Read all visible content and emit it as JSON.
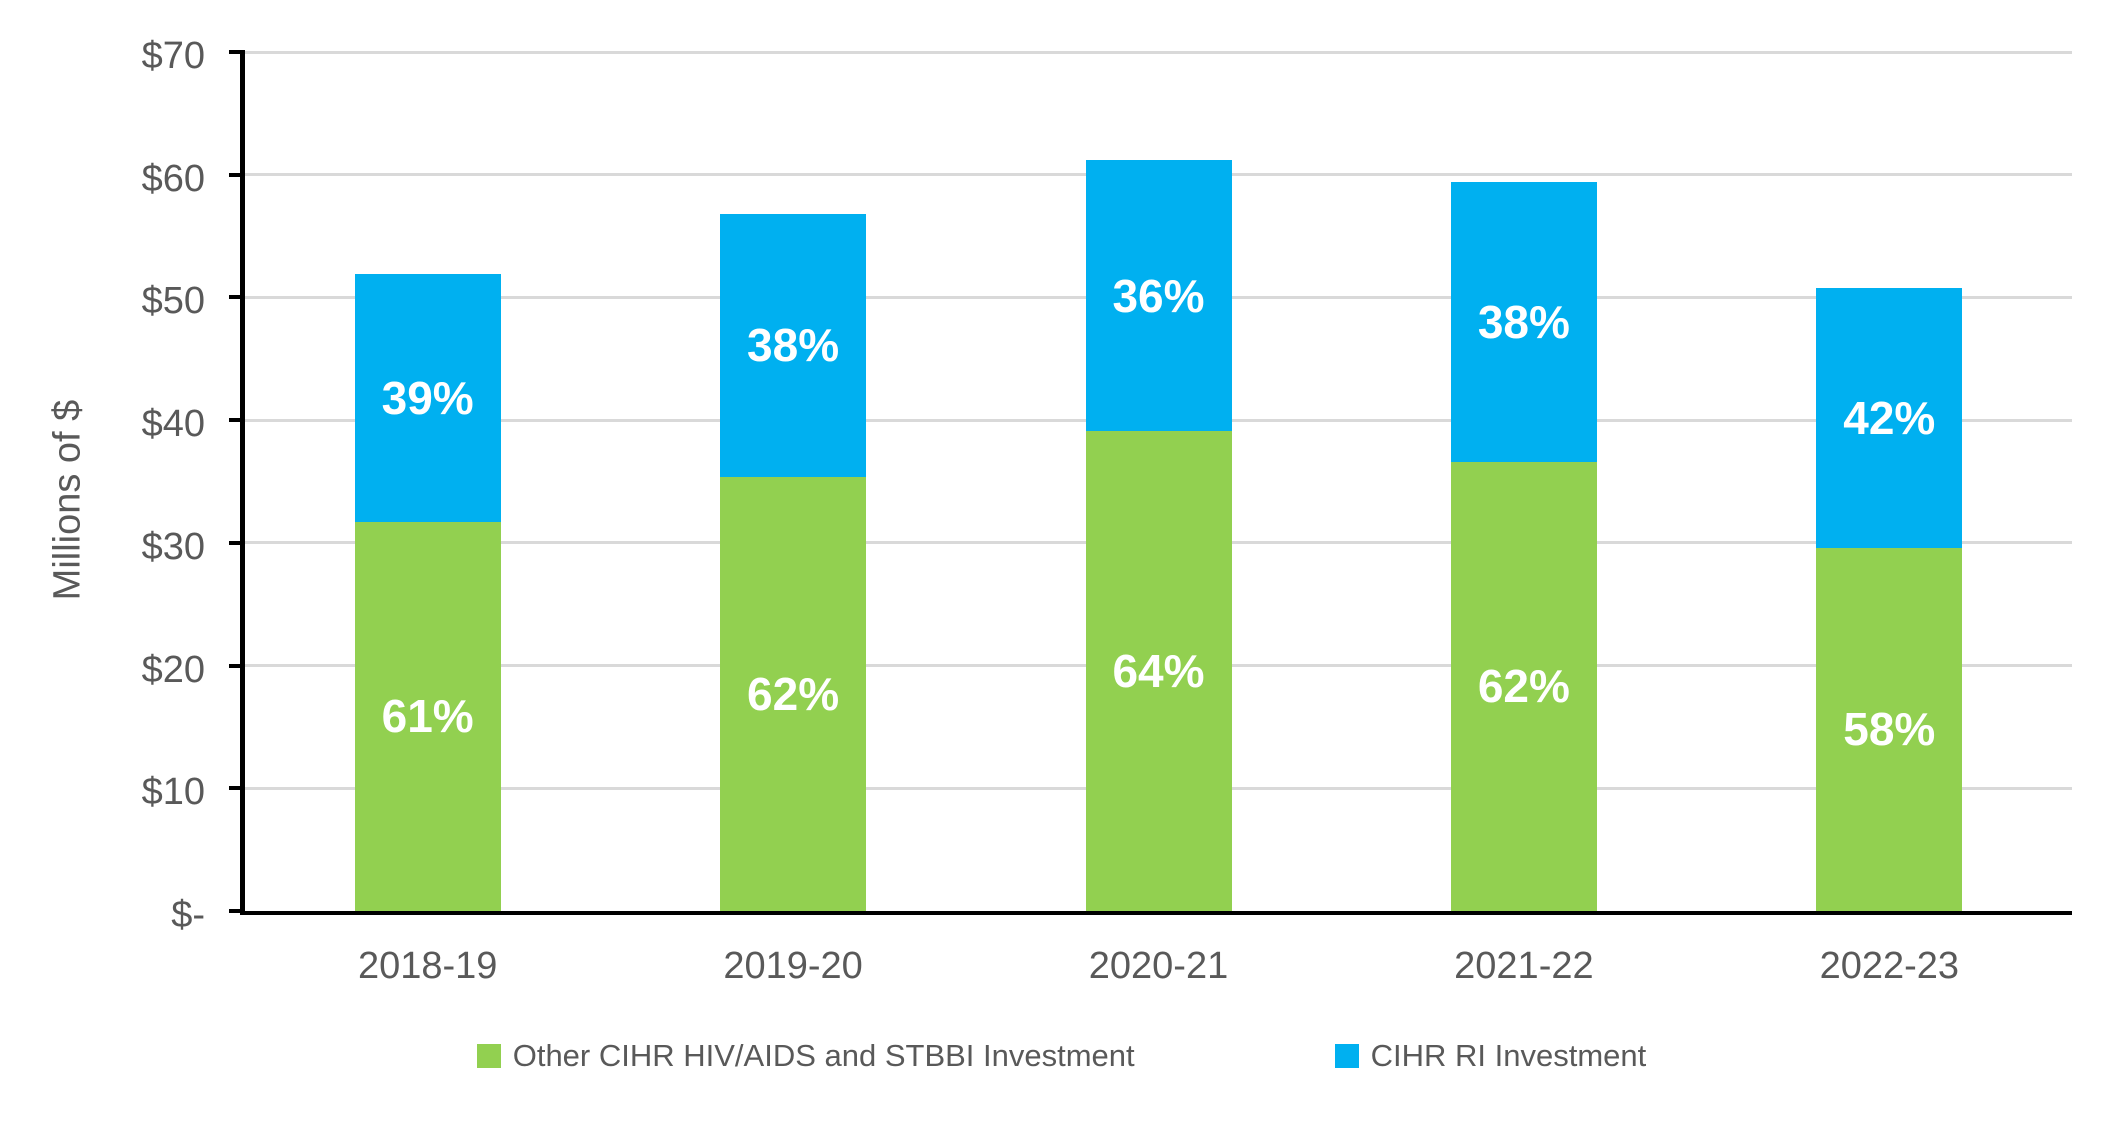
{
  "chart_data": {
    "type": "bar",
    "stacked": true,
    "title": "",
    "ylabel": "Millions of $",
    "xlabel": "",
    "categories": [
      "2018-19",
      "2019-20",
      "2020-21",
      "2021-22",
      "2022-23"
    ],
    "series": [
      {
        "name": "Other CIHR HIV/AIDS and STBBI Investment",
        "color": "#92D050",
        "values": [
          31.7,
          35.4,
          39.1,
          36.6,
          29.6
        ],
        "labels": [
          "61%",
          "62%",
          "64%",
          "62%",
          "58%"
        ]
      },
      {
        "name": "CIHR RI Investment",
        "color": "#00B0F0",
        "values": [
          20.2,
          21.4,
          22.1,
          22.8,
          21.2
        ],
        "labels": [
          "39%",
          "38%",
          "36%",
          "38%",
          "42%"
        ]
      }
    ],
    "totals": [
      51.9,
      56.8,
      61.2,
      59.4,
      50.8
    ],
    "ylim": [
      0,
      70
    ],
    "yticks": [
      {
        "value": 0,
        "label": "$-"
      },
      {
        "value": 10,
        "label": "$10"
      },
      {
        "value": 20,
        "label": "$20"
      },
      {
        "value": 30,
        "label": "$30"
      },
      {
        "value": 40,
        "label": "$40"
      },
      {
        "value": 50,
        "label": "$50"
      },
      {
        "value": 60,
        "label": "$60"
      },
      {
        "value": 70,
        "label": "$70"
      }
    ],
    "grid": true,
    "legend_position": "bottom",
    "label_color": "#ffffff",
    "axis_text_color": "#595959",
    "gridline_color": "#d9d9d9",
    "axis_line_color": "#000000"
  }
}
